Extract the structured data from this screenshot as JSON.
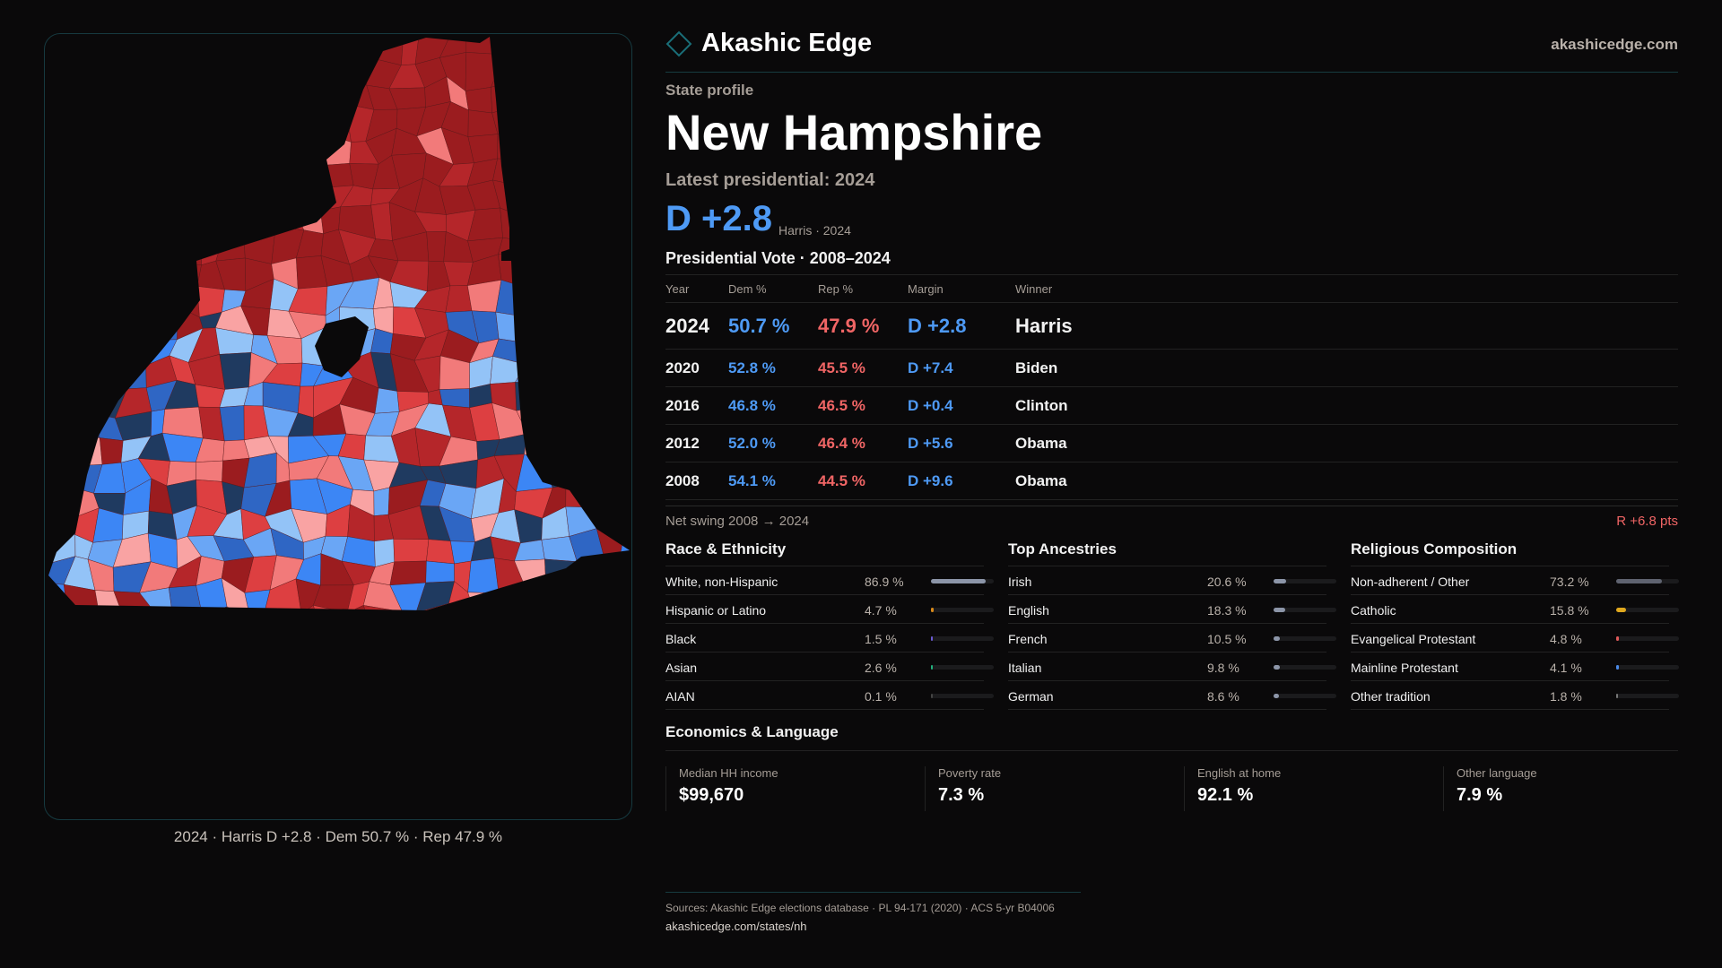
{
  "brand": {
    "name": "Akashic Edge",
    "site": "akashicedge.com"
  },
  "profile": {
    "kicker": "State profile",
    "state": "New Hampshire",
    "latest_label": "Latest presidential: 2024",
    "headline_margin": "D +2.8",
    "headline_sub": "Harris · 2024"
  },
  "vote_table": {
    "title": "Presidential Vote · 2008–2024",
    "headers": [
      "Year",
      "Dem %",
      "Rep %",
      "Margin",
      "Winner"
    ],
    "rows": [
      {
        "year": "2024",
        "dem": "50.7 %",
        "rep": "47.9 %",
        "margin": "D +2.8",
        "winner": "Harris"
      },
      {
        "year": "2020",
        "dem": "52.8 %",
        "rep": "45.5 %",
        "margin": "D +7.4",
        "winner": "Biden"
      },
      {
        "year": "2016",
        "dem": "46.8 %",
        "rep": "46.5 %",
        "margin": "D +0.4",
        "winner": "Clinton"
      },
      {
        "year": "2012",
        "dem": "52.0 %",
        "rep": "46.4 %",
        "margin": "D +5.6",
        "winner": "Obama"
      },
      {
        "year": "2008",
        "dem": "54.1 %",
        "rep": "44.5 %",
        "margin": "D +9.6",
        "winner": "Obama"
      }
    ],
    "swing_label": "Net swing 2008 → 2024",
    "swing_value": "R +6.8 pts"
  },
  "sections": [
    {
      "title": "Race & Ethnicity",
      "rows": [
        {
          "label": "White, non-Hispanic",
          "value": "86.9 %",
          "pct": 86.9,
          "color": "#8c95a8"
        },
        {
          "label": "Hispanic or Latino",
          "value": "4.7 %",
          "pct": 4.7,
          "color": "#d98a1a"
        },
        {
          "label": "Black",
          "value": "1.5 %",
          "pct": 1.5,
          "color": "#6b5bd6"
        },
        {
          "label": "Asian",
          "value": "2.6 %",
          "pct": 2.6,
          "color": "#22b07d"
        },
        {
          "label": "AIAN",
          "value": "0.1 %",
          "pct": 0.1,
          "color": "#444"
        }
      ]
    },
    {
      "title": "Top Ancestries",
      "rows": [
        {
          "label": "Irish",
          "value": "20.6 %",
          "pct": 20.6,
          "color": "#8c95a8"
        },
        {
          "label": "English",
          "value": "18.3 %",
          "pct": 18.3,
          "color": "#8c95a8"
        },
        {
          "label": "French",
          "value": "10.5 %",
          "pct": 10.5,
          "color": "#8c95a8"
        },
        {
          "label": "Italian",
          "value": "9.8 %",
          "pct": 9.8,
          "color": "#8c95a8"
        },
        {
          "label": "German",
          "value": "8.6 %",
          "pct": 8.6,
          "color": "#8c95a8"
        }
      ]
    },
    {
      "title": "Religious Composition",
      "rows": [
        {
          "label": "Non-adherent / Other",
          "value": "73.2 %",
          "pct": 73.2,
          "color": "#5f6370"
        },
        {
          "label": "Catholic",
          "value": "15.8 %",
          "pct": 15.8,
          "color": "#e0a81e"
        },
        {
          "label": "Evangelical Protestant",
          "value": "4.8 %",
          "pct": 4.8,
          "color": "#e05a5a"
        },
        {
          "label": "Mainline Protestant",
          "value": "4.1 %",
          "pct": 4.1,
          "color": "#4a8ae8"
        },
        {
          "label": "Other tradition",
          "value": "1.8 %",
          "pct": 1.8,
          "color": "#777"
        }
      ]
    }
  ],
  "economics": {
    "title": "Economics & Language",
    "cards": [
      {
        "label": "Median HH income",
        "value": "$99,670"
      },
      {
        "label": "Poverty rate",
        "value": "7.3 %"
      },
      {
        "label": "English at home",
        "value": "92.1 %"
      },
      {
        "label": "Other language",
        "value": "7.9 %"
      }
    ]
  },
  "footer": {
    "sources": "Sources: Akashic Edge elections database · PL 94-171 (2020) · ACS 5-yr B04006",
    "url": "akashicedge.com/states/nh"
  },
  "map": {
    "caption": "2024 · Harris D +2.8 · Dem 50.7 % · Rep 47.9 %",
    "palette": [
      "#9b1c1f",
      "#b5262a",
      "#dd3f41",
      "#f27a7a",
      "#f9a3a3",
      "#e8e8ea",
      "#93c3f7",
      "#6aa6f5",
      "#3c86f5",
      "#2f66c4",
      "#1f3a60"
    ]
  },
  "colors": {
    "dem": "#4e9af5",
    "rep": "#f06565",
    "accent": "#1a6e78"
  }
}
